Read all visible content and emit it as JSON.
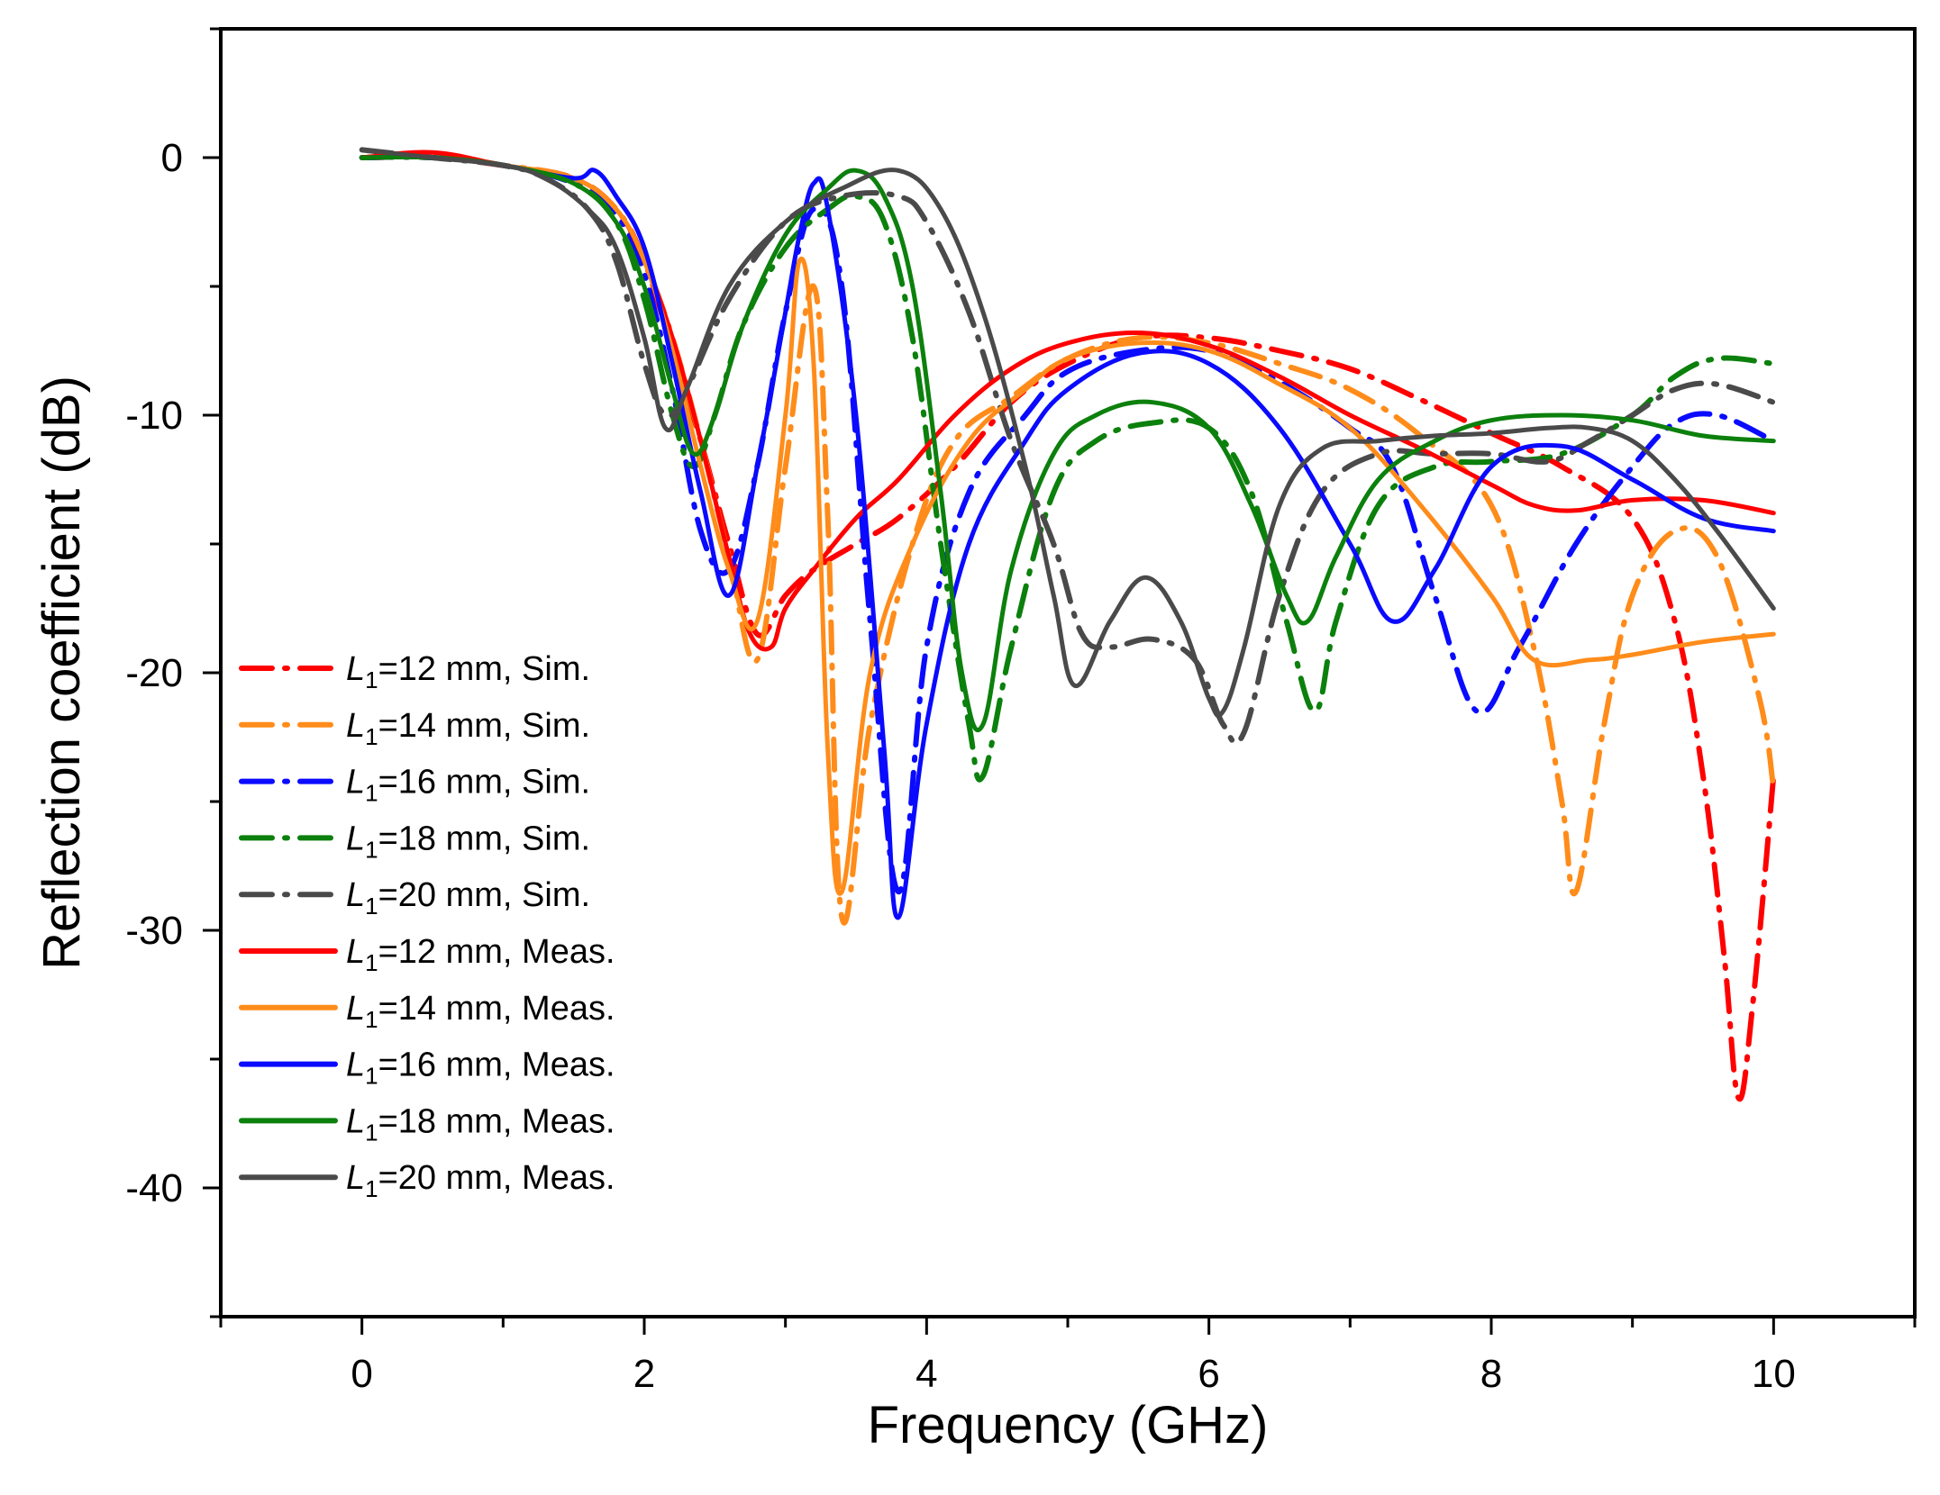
{
  "chart_data": {
    "type": "line",
    "title": "",
    "xlabel": "Frequency (GHz)",
    "ylabel": "Reflection coefficient (dB)",
    "xlim": [
      -1,
      11
    ],
    "ylim": [
      -45,
      5
    ],
    "xticks": [
      0,
      2,
      4,
      6,
      8,
      10
    ],
    "yticks": [
      0,
      -10,
      -20,
      -30,
      -40
    ],
    "xtick_labels": [
      "0",
      "2",
      "4",
      "6",
      "8",
      "10"
    ],
    "ytick_labels": [
      "0",
      "-10",
      "-20",
      "-30",
      "-40"
    ],
    "grid": false,
    "legend_position": "left",
    "series": [
      {
        "name": "L1=12 mm, Sim.",
        "legend": {
          "italic": "L",
          "sub": "1",
          "rest": "=12 mm, Sim."
        },
        "color": "#ff0000",
        "style": "dashdot",
        "x": [
          0,
          0.5,
          1,
          1.5,
          1.8,
          2.0,
          2.2,
          2.4,
          2.6,
          2.8,
          3.0,
          3.2,
          3.5,
          3.8,
          4.2,
          4.6,
          5.0,
          5.5,
          6.0,
          6.5,
          7.0,
          7.5,
          8.0,
          8.5,
          9.0,
          9.3,
          9.5,
          9.65,
          9.75,
          9.85,
          10.0
        ],
        "y": [
          0,
          0,
          -0.3,
          -0.8,
          -2,
          -4,
          -7.5,
          -11,
          -15,
          -18.5,
          -17,
          -16,
          -15,
          -14,
          -12,
          -9.5,
          -8,
          -7,
          -7,
          -7.5,
          -8.2,
          -9.4,
          -10.7,
          -12,
          -14,
          -18,
          -24,
          -31,
          -36.5,
          -33,
          -24
        ]
      },
      {
        "name": "L1=14 mm, Sim.",
        "legend": {
          "italic": "L",
          "sub": "1",
          "rest": "=14 mm, Sim."
        },
        "color": "#ff8c1a",
        "style": "dashdot",
        "x": [
          0,
          0.5,
          1,
          1.5,
          1.8,
          2.0,
          2.2,
          2.4,
          2.6,
          2.8,
          3.0,
          3.2,
          3.3,
          3.4,
          3.6,
          3.9,
          4.2,
          4.6,
          5.0,
          5.5,
          6.0,
          6.5,
          7.0,
          7.5,
          8.0,
          8.3,
          8.5,
          8.6,
          8.8,
          9.0,
          9.3,
          9.6,
          9.9,
          10.0
        ],
        "y": [
          0,
          0,
          -0.3,
          -0.8,
          -2,
          -4,
          -7,
          -11,
          -15.5,
          -19.5,
          -12,
          -5,
          -14,
          -29.5,
          -22,
          -15,
          -11,
          -9.3,
          -7.8,
          -7,
          -7.2,
          -8,
          -9,
          -10.8,
          -13.5,
          -19,
          -25,
          -28.5,
          -22,
          -17,
          -14.5,
          -15.5,
          -21,
          -24.5
        ]
      },
      {
        "name": "L1=16 mm, Sim.",
        "legend": {
          "italic": "L",
          "sub": "1",
          "rest": "=16 mm, Sim."
        },
        "color": "#0a0aff",
        "style": "dashdot",
        "x": [
          0,
          0.5,
          1,
          1.5,
          1.8,
          2.0,
          2.2,
          2.4,
          2.6,
          2.8,
          3.0,
          3.2,
          3.4,
          3.6,
          3.8,
          4.0,
          4.3,
          4.7,
          5.0,
          5.5,
          6.0,
          6.5,
          7.0,
          7.3,
          7.6,
          7.9,
          8.2,
          8.6,
          9.0,
          9.3,
          9.6,
          10.0
        ],
        "y": [
          0,
          0,
          -0.3,
          -1,
          -2.2,
          -4.5,
          -9,
          -14.5,
          -16,
          -12,
          -6,
          -2,
          -5,
          -18,
          -28.5,
          -19,
          -13,
          -10,
          -8.3,
          -7.5,
          -7.5,
          -8.7,
          -10.5,
          -12,
          -17,
          -21.5,
          -19,
          -15,
          -12,
          -10.3,
          -10,
          -11
        ]
      },
      {
        "name": "L1=18 mm, Sim.",
        "legend": {
          "italic": "L",
          "sub": "1",
          "rest": "=18 mm, Sim."
        },
        "color": "#0c800c",
        "style": "dashdot",
        "x": [
          0,
          0.5,
          1,
          1.5,
          1.8,
          2.0,
          2.2,
          2.35,
          2.5,
          2.7,
          3.0,
          3.3,
          3.5,
          3.7,
          3.9,
          4.1,
          4.3,
          4.4,
          4.6,
          4.9,
          5.2,
          5.6,
          6.0,
          6.3,
          6.55,
          6.75,
          6.9,
          7.2,
          7.6,
          8.0,
          8.5,
          9.0,
          9.3,
          9.6,
          10.0
        ],
        "y": [
          0,
          0,
          -0.3,
          -1,
          -2.5,
          -5.5,
          -10,
          -12,
          -10,
          -6.5,
          -3.5,
          -2,
          -1.5,
          -2.5,
          -7,
          -15,
          -22,
          -24,
          -19,
          -13,
          -11,
          -10.3,
          -10.5,
          -13,
          -18,
          -21.5,
          -18,
          -13.5,
          -12,
          -11.8,
          -11.5,
          -10,
          -8.5,
          -7.8,
          -8
        ]
      },
      {
        "name": "L1=20 mm, Sim.",
        "legend": {
          "italic": "L",
          "sub": "1",
          "rest": "=20 mm, Sim."
        },
        "color": "#4a4a4a",
        "style": "dashdot",
        "x": [
          0,
          0.5,
          1,
          1.3,
          1.6,
          1.8,
          2.0,
          2.15,
          2.3,
          2.6,
          3.0,
          3.4,
          3.8,
          4.0,
          4.3,
          4.6,
          4.9,
          5.1,
          5.3,
          5.6,
          5.9,
          6.1,
          6.25,
          6.5,
          6.8,
          7.2,
          7.6,
          8.0,
          8.4,
          8.7,
          9.0,
          9.3,
          9.6,
          10.0
        ],
        "y": [
          0.3,
          0,
          -0.3,
          -0.8,
          -2,
          -4,
          -8,
          -10,
          -9,
          -5.5,
          -2.5,
          -1.5,
          -1.5,
          -2.5,
          -6,
          -11,
          -15,
          -18.5,
          -19,
          -18.7,
          -19.5,
          -22,
          -22.3,
          -17,
          -13,
          -11.5,
          -11.5,
          -11.5,
          -11.8,
          -11,
          -10,
          -9,
          -8.8,
          -9.5
        ]
      },
      {
        "name": "L1=12 mm, Meas.",
        "legend": {
          "italic": "L",
          "sub": "1",
          "rest": "=12 mm, Meas."
        },
        "color": "#ff0000",
        "style": "solid",
        "x": [
          0,
          0.5,
          1,
          1.5,
          1.8,
          2.0,
          2.2,
          2.4,
          2.6,
          2.75,
          2.9,
          3.0,
          3.2,
          3.5,
          3.8,
          4.2,
          4.6,
          5.0,
          5.5,
          6.0,
          6.5,
          7.0,
          7.5,
          8.0,
          8.3,
          8.6,
          9.0,
          9.5,
          10.0
        ],
        "y": [
          0,
          0.2,
          -0.3,
          -0.8,
          -2,
          -4,
          -7,
          -11,
          -15.5,
          -18.5,
          -19,
          -17.5,
          -16,
          -14,
          -12.5,
          -10,
          -8.2,
          -7.2,
          -6.8,
          -7.3,
          -8.5,
          -10,
          -11.3,
          -12.7,
          -13.5,
          -13.7,
          -13.3,
          -13.3,
          -13.8
        ]
      },
      {
        "name": "L1=14 mm, Meas.",
        "legend": {
          "italic": "L",
          "sub": "1",
          "rest": "=14 mm, Meas."
        },
        "color": "#ff8c1a",
        "style": "solid",
        "x": [
          0,
          0.5,
          1,
          1.5,
          1.8,
          2.0,
          2.2,
          2.4,
          2.6,
          2.8,
          3.0,
          3.1,
          3.2,
          3.3,
          3.4,
          3.6,
          3.9,
          4.3,
          4.7,
          5.0,
          5.5,
          6.0,
          6.5,
          7.0,
          7.5,
          8.0,
          8.3,
          8.7,
          9.0,
          9.5,
          10.0
        ],
        "y": [
          0,
          0,
          -0.3,
          -0.8,
          -2,
          -4,
          -7.5,
          -12,
          -16,
          -18,
          -10,
          -4,
          -8,
          -23,
          -28.5,
          -20,
          -15,
          -11,
          -9,
          -7.8,
          -7.2,
          -7.5,
          -8.8,
          -10.5,
          -13.5,
          -17,
          -19.5,
          -19.5,
          -19.3,
          -18.8,
          -18.5
        ]
      },
      {
        "name": "L1=16 mm, Meas.",
        "legend": {
          "italic": "L",
          "sub": "1",
          "rest": "=16 mm, Meas."
        },
        "color": "#0a0aff",
        "style": "solid",
        "x": [
          0,
          0.5,
          1,
          1.5,
          1.65,
          1.8,
          2.0,
          2.2,
          2.4,
          2.6,
          2.8,
          3.0,
          3.1,
          3.2,
          3.3,
          3.5,
          3.7,
          3.8,
          4.0,
          4.3,
          4.7,
          5.0,
          5.5,
          6.0,
          6.5,
          7.0,
          7.3,
          7.6,
          8.0,
          8.5,
          9.0,
          9.5,
          10.0
        ],
        "y": [
          0,
          0,
          -0.3,
          -0.8,
          -0.5,
          -1.5,
          -3.5,
          -8,
          -13,
          -17,
          -12,
          -6,
          -3,
          -1,
          -2,
          -10,
          -23,
          -29.5,
          -22,
          -15,
          -11,
          -9,
          -7.6,
          -8,
          -10.5,
          -15,
          -18,
          -16,
          -12,
          -11.2,
          -12.5,
          -14,
          -14.5
        ]
      },
      {
        "name": "L1=18 mm, Meas.",
        "legend": {
          "italic": "L",
          "sub": "1",
          "rest": "=18 mm, Meas."
        },
        "color": "#0c800c",
        "style": "solid",
        "x": [
          0,
          0.5,
          1,
          1.5,
          1.8,
          2.0,
          2.2,
          2.35,
          2.5,
          2.7,
          3.0,
          3.3,
          3.5,
          3.7,
          3.9,
          4.1,
          4.25,
          4.4,
          4.6,
          4.9,
          5.2,
          5.6,
          6.0,
          6.3,
          6.55,
          6.7,
          6.9,
          7.2,
          7.6,
          8.0,
          8.5,
          9.0,
          9.5,
          10.0
        ],
        "y": [
          0,
          0,
          -0.3,
          -1,
          -2.5,
          -5,
          -9,
          -11.5,
          -10,
          -6.5,
          -3,
          -1.2,
          -0.5,
          -1.5,
          -5,
          -13,
          -20,
          -22,
          -16,
          -11.5,
          -10,
          -9.5,
          -10.5,
          -13.5,
          -17,
          -18,
          -15.5,
          -12.5,
          -11,
          -10.2,
          -10,
          -10.2,
          -10.8,
          -11
        ]
      },
      {
        "name": "L1=20 mm, Meas.",
        "legend": {
          "italic": "L",
          "sub": "1",
          "rest": "=20 mm, Meas."
        },
        "color": "#4a4a4a",
        "style": "solid",
        "x": [
          0,
          0.5,
          1,
          1.3,
          1.6,
          1.8,
          2.0,
          2.15,
          2.3,
          2.6,
          3.0,
          3.4,
          3.8,
          4.1,
          4.4,
          4.7,
          4.9,
          5.05,
          5.3,
          5.55,
          5.8,
          6.0,
          6.1,
          6.25,
          6.5,
          6.8,
          7.2,
          7.6,
          8.0,
          8.4,
          8.7,
          9.0,
          9.3,
          9.6,
          10.0
        ],
        "y": [
          0.3,
          0,
          -0.3,
          -0.8,
          -2,
          -3.5,
          -7,
          -10.5,
          -9,
          -5,
          -2.5,
          -1.2,
          -0.5,
          -2,
          -6,
          -12,
          -17,
          -20.5,
          -18,
          -16.3,
          -18,
          -21,
          -21.5,
          -19,
          -13.5,
          -11.3,
          -11,
          -10.8,
          -10.7,
          -10.5,
          -10.5,
          -11,
          -12.5,
          -14.5,
          -17.5
        ]
      }
    ]
  }
}
